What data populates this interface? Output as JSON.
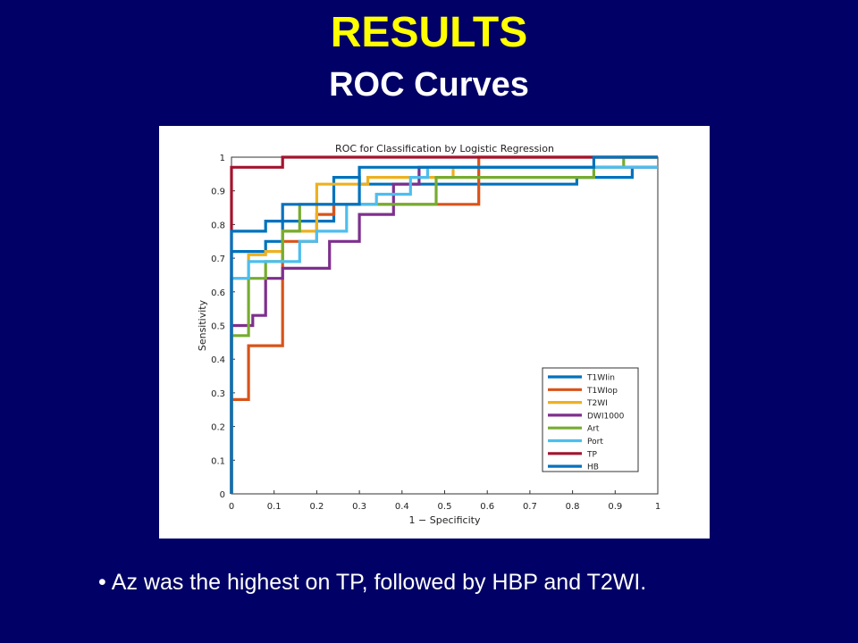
{
  "slide": {
    "title": "RESULTS",
    "subtitle": "ROC Curves",
    "bullet": "Az was the highest on TP, followed by HBP and T2WI.",
    "title_color": "#ffff00",
    "background_color": "#000066"
  },
  "chart_data": {
    "type": "line",
    "title": "ROC for Classification by Logistic Regression",
    "xlabel": "1 − Specificity",
    "ylabel": "Sensitivity",
    "xlim": [
      0,
      1
    ],
    "ylim": [
      0,
      1
    ],
    "xticks": [
      "0",
      "0.1",
      "0.2",
      "0.3",
      "0.4",
      "0.5",
      "0.6",
      "0.7",
      "0.8",
      "0.9",
      "1"
    ],
    "yticks": [
      "0",
      "0.1",
      "0.2",
      "0.3",
      "0.4",
      "0.5",
      "0.6",
      "0.7",
      "0.8",
      "0.9",
      "1"
    ],
    "grid": false,
    "legend_position": "bottom-right",
    "series": [
      {
        "name": "T1WIin",
        "color": "#0072bd",
        "x": [
          0,
          0,
          0.08,
          0.08,
          0.12,
          0.12,
          0.24,
          0.24,
          0.3,
          0.3,
          0.81,
          0.81,
          0.94,
          0.94,
          1
        ],
        "y": [
          0,
          0.72,
          0.72,
          0.75,
          0.75,
          0.81,
          0.81,
          0.94,
          0.94,
          0.92,
          0.92,
          0.94,
          0.94,
          0.97,
          0.97
        ]
      },
      {
        "name": "T1WIop",
        "color": "#d95319",
        "x": [
          0,
          0,
          0.04,
          0.04,
          0.12,
          0.12,
          0.2,
          0.2,
          0.24,
          0.24,
          0.58,
          0.58,
          1
        ],
        "y": [
          0,
          0.28,
          0.28,
          0.44,
          0.44,
          0.75,
          0.75,
          0.83,
          0.83,
          0.86,
          0.86,
          1,
          1
        ]
      },
      {
        "name": "T2WI",
        "color": "#edb120",
        "x": [
          0,
          0,
          0.04,
          0.04,
          0.08,
          0.08,
          0.12,
          0.12,
          0.2,
          0.2,
          0.32,
          0.32,
          0.52,
          0.52,
          1
        ],
        "y": [
          0,
          0.64,
          0.64,
          0.71,
          0.71,
          0.72,
          0.72,
          0.78,
          0.78,
          0.92,
          0.92,
          0.94,
          0.94,
          0.97,
          0.97
        ]
      },
      {
        "name": "DWI1000",
        "color": "#7e2f8e",
        "x": [
          0,
          0,
          0.05,
          0.05,
          0.08,
          0.08,
          0.12,
          0.12,
          0.23,
          0.23,
          0.3,
          0.3,
          0.38,
          0.38,
          0.44,
          0.44,
          0.96,
          0.96,
          1
        ],
        "y": [
          0,
          0.5,
          0.5,
          0.53,
          0.53,
          0.64,
          0.64,
          0.67,
          0.67,
          0.75,
          0.75,
          0.83,
          0.83,
          0.92,
          0.92,
          0.97,
          0.97,
          0.97,
          0.97
        ]
      },
      {
        "name": "Art",
        "color": "#77ac30",
        "x": [
          0,
          0,
          0.04,
          0.04,
          0.08,
          0.08,
          0.12,
          0.12,
          0.16,
          0.16,
          0.48,
          0.48,
          0.85,
          0.85,
          0.92,
          0.92,
          1
        ],
        "y": [
          0,
          0.47,
          0.47,
          0.64,
          0.64,
          0.69,
          0.69,
          0.78,
          0.78,
          0.86,
          0.86,
          0.94,
          0.94,
          0.97,
          0.97,
          1,
          1
        ]
      },
      {
        "name": "Port",
        "color": "#4dbeee",
        "x": [
          0,
          0,
          0.04,
          0.04,
          0.16,
          0.16,
          0.2,
          0.2,
          0.27,
          0.27,
          0.34,
          0.34,
          0.42,
          0.42,
          0.46,
          0.46,
          1
        ],
        "y": [
          0,
          0.64,
          0.64,
          0.69,
          0.69,
          0.75,
          0.75,
          0.78,
          0.78,
          0.86,
          0.86,
          0.89,
          0.89,
          0.94,
          0.94,
          0.97,
          0.97
        ]
      },
      {
        "name": "TP",
        "color": "#a2142f",
        "x": [
          0,
          0,
          0.04,
          0.04,
          0.12,
          0.12,
          0.85,
          0.85,
          1
        ],
        "y": [
          0,
          0.97,
          0.97,
          0.97,
          0.97,
          1,
          1,
          1,
          1
        ]
      },
      {
        "name": "HB",
        "color": "#0072bd",
        "x": [
          0,
          0,
          0.08,
          0.08,
          0.12,
          0.12,
          0.3,
          0.3,
          0.85,
          0.85,
          1
        ],
        "y": [
          0,
          0.78,
          0.78,
          0.81,
          0.81,
          0.86,
          0.86,
          0.97,
          0.97,
          1,
          1
        ]
      }
    ]
  }
}
